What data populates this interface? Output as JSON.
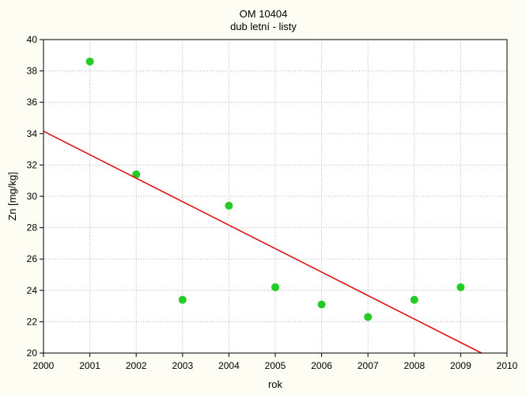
{
  "chart_data": {
    "type": "scatter",
    "title": "OM 10404",
    "subtitle": "dub letní - listy",
    "xlabel": "rok",
    "ylabel": "Zn [mg/kg]",
    "xlim": [
      2000,
      2010
    ],
    "ylim": [
      20,
      40
    ],
    "x_ticks": [
      2000,
      2001,
      2002,
      2003,
      2004,
      2005,
      2006,
      2007,
      2008,
      2009,
      2010
    ],
    "y_ticks": [
      20,
      22,
      24,
      26,
      28,
      30,
      32,
      34,
      36,
      38,
      40
    ],
    "grid": true,
    "series": [
      {
        "type": "scatter",
        "color": "#22cc22",
        "points": [
          {
            "x": 2001,
            "y": 38.6
          },
          {
            "x": 2002,
            "y": 31.4
          },
          {
            "x": 2003,
            "y": 23.4
          },
          {
            "x": 2004,
            "y": 29.4
          },
          {
            "x": 2005,
            "y": 24.2
          },
          {
            "x": 2006,
            "y": 23.1
          },
          {
            "x": 2007,
            "y": 22.3
          },
          {
            "x": 2008,
            "y": 23.4
          },
          {
            "x": 2009,
            "y": 24.2
          }
        ]
      },
      {
        "type": "line",
        "color": "#dd1111",
        "points": [
          {
            "x": 2000,
            "y": 34.15
          },
          {
            "x": 2009.45,
            "y": 20.0
          }
        ]
      }
    ]
  }
}
